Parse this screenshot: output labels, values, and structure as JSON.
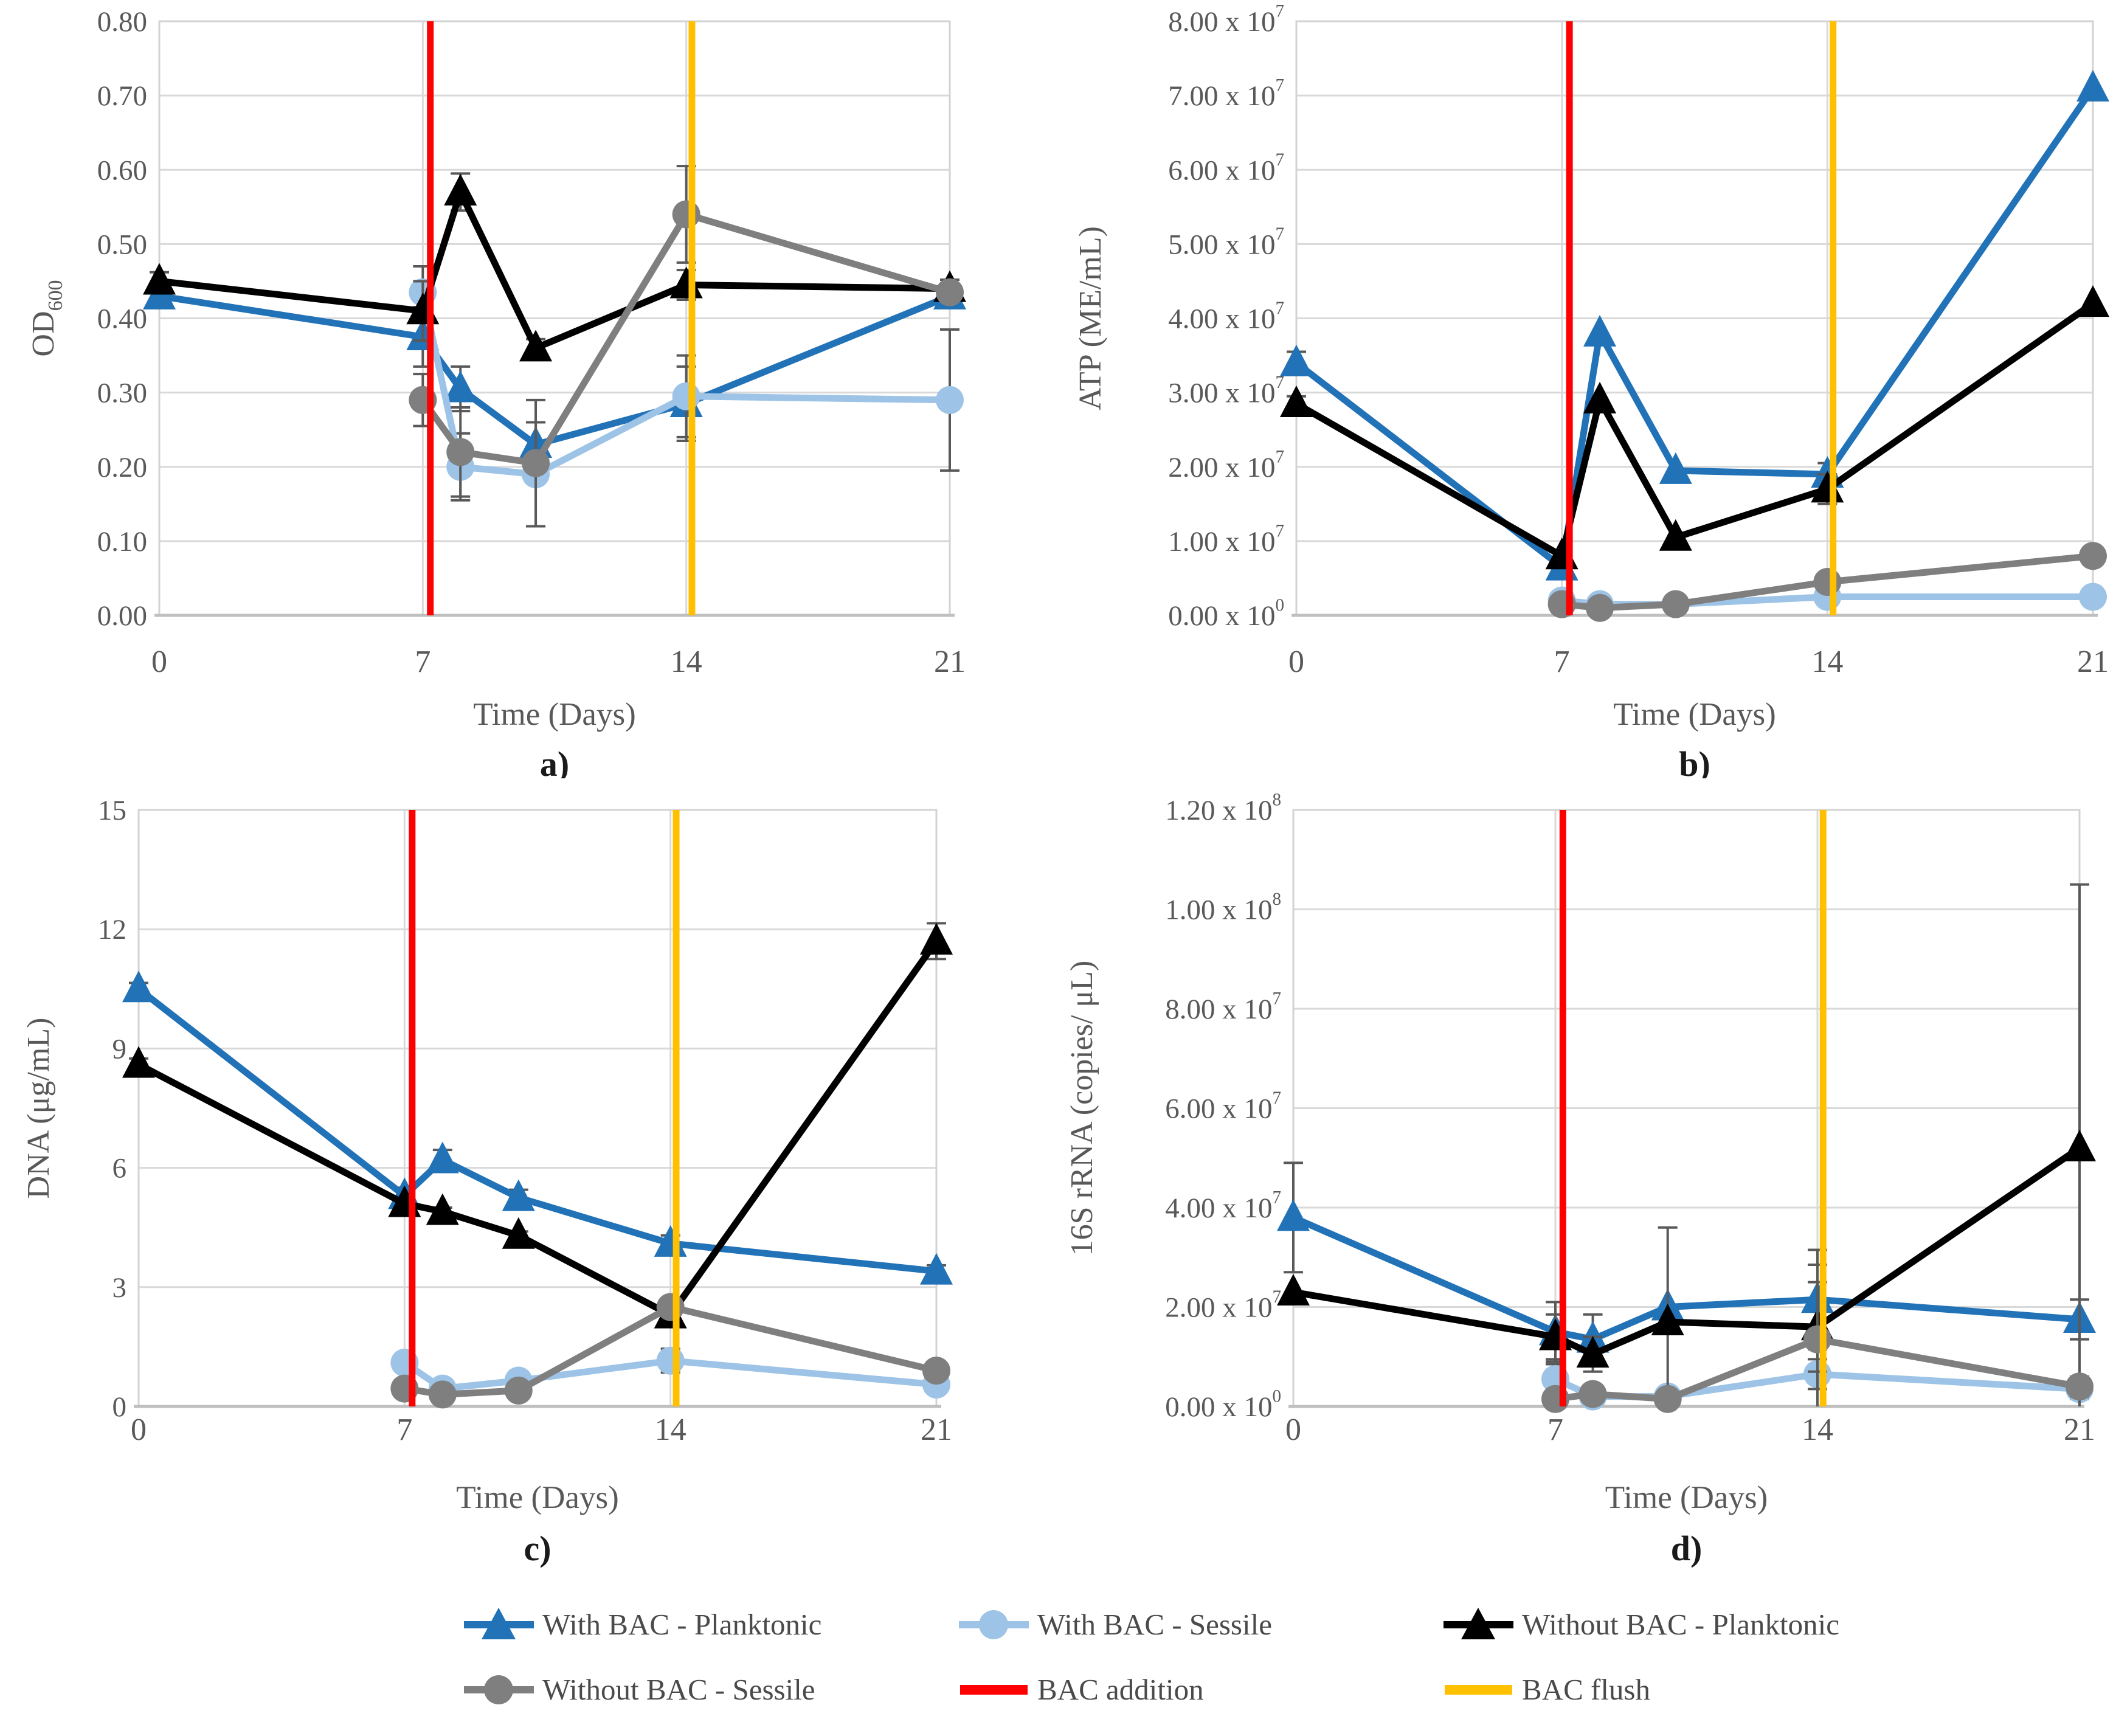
{
  "figure": {
    "background": "#FFFFFF"
  },
  "colors": {
    "blue": "#2272B8",
    "lightblue": "#9DC3E6",
    "black": "#000000",
    "gray": "#7F7F7F",
    "red": "#FF0000",
    "gold": "#FFC000",
    "grid": "#D9D9D9",
    "axis_text": "#595959",
    "panel_text": "#1a1a1a",
    "error_bar": "#595959"
  },
  "legend": {
    "items": [
      {
        "label": "With BAC - Planktonic",
        "color_key": "blue",
        "marker": "triangle"
      },
      {
        "label": "With BAC - Sessile",
        "color_key": "lightblue",
        "marker": "circle"
      },
      {
        "label": "Without BAC - Planktonic",
        "color_key": "black",
        "marker": "triangle"
      },
      {
        "label": "Without BAC - Sessile",
        "color_key": "gray",
        "marker": "circle"
      },
      {
        "label": "BAC addition",
        "color_key": "red",
        "marker": "line"
      },
      {
        "label": "BAC flush",
        "color_key": "gold",
        "marker": "line"
      }
    ]
  },
  "chart_data": [
    {
      "id": "a",
      "type": "line",
      "panel_label": "a)",
      "xlabel": "Time (Days)",
      "ylabel": "OD",
      "ylabel_sub": "600",
      "xlim": [
        0,
        21
      ],
      "x_ticks": [
        0,
        7,
        14,
        21
      ],
      "ylim": [
        0,
        0.8
      ],
      "y_ticks": [
        {
          "v": 0.0,
          "label": "0.00"
        },
        {
          "v": 0.1,
          "label": "0.10"
        },
        {
          "v": 0.2,
          "label": "0.20"
        },
        {
          "v": 0.3,
          "label": "0.30"
        },
        {
          "v": 0.4,
          "label": "0.40"
        },
        {
          "v": 0.5,
          "label": "0.50"
        },
        {
          "v": 0.6,
          "label": "0.60"
        },
        {
          "v": 0.7,
          "label": "0.70"
        },
        {
          "v": 0.8,
          "label": "0.80"
        }
      ],
      "x": [
        0,
        7,
        8,
        10,
        14,
        21
      ],
      "series": [
        {
          "name": "With BAC - Planktonic",
          "color_key": "blue",
          "marker": "triangle",
          "y": [
            0.43,
            0.375,
            0.305,
            0.23,
            0.285,
            0.43
          ],
          "err": [
            0.012,
            0.04,
            0.03,
            0.03,
            0.05,
            0.012
          ]
        },
        {
          "name": "With BAC - Sessile",
          "color_key": "lightblue",
          "marker": "circle",
          "y": [
            null,
            0.435,
            0.2,
            0.19,
            0.295,
            0.29
          ],
          "err": [
            0,
            0.035,
            0.045,
            0.07,
            0.055,
            0.095
          ]
        },
        {
          "name": "Without BAC - Planktonic",
          "color_key": "black",
          "marker": "triangle",
          "y": [
            0.45,
            0.41,
            0.57,
            0.36,
            0.445,
            0.44
          ],
          "err": [
            0.012,
            0.04,
            0.025,
            0.012,
            0.02,
            0.012
          ]
        },
        {
          "name": "Without BAC - Sessile",
          "color_key": "gray",
          "marker": "circle",
          "y": [
            null,
            0.29,
            0.22,
            0.205,
            0.54,
            0.435
          ],
          "err": [
            0,
            0.035,
            0.06,
            0.085,
            0.065,
            0.012
          ]
        }
      ],
      "vlines": [
        {
          "x": 7.2,
          "color_key": "red",
          "name": "BAC addition"
        },
        {
          "x": 14.15,
          "color_key": "gold",
          "name": "BAC flush"
        }
      ]
    },
    {
      "id": "b",
      "type": "line",
      "panel_label": "b)",
      "xlabel": "Time (Days)",
      "ylabel": "ATP (ME/mL)",
      "xlim": [
        0,
        21
      ],
      "x_ticks": [
        0,
        7,
        14,
        21
      ],
      "ylim": [
        0,
        80000000
      ],
      "y_ticks": [
        {
          "v": 0,
          "label": "0.00 x 10^0"
        },
        {
          "v": 10000000,
          "label": "1.00 x 10^7"
        },
        {
          "v": 20000000,
          "label": "2.00 x 10^7"
        },
        {
          "v": 30000000,
          "label": "3.00 x 10^7"
        },
        {
          "v": 40000000,
          "label": "4.00 x 10^7"
        },
        {
          "v": 50000000,
          "label": "5.00 x 10^7"
        },
        {
          "v": 60000000,
          "label": "6.00 x 10^7"
        },
        {
          "v": 70000000,
          "label": "7.00 x 10^7"
        },
        {
          "v": 80000000,
          "label": "8.00 x 10^7"
        }
      ],
      "x": [
        0,
        7,
        8,
        10,
        14,
        21
      ],
      "series": [
        {
          "name": "With BAC - Planktonic",
          "color_key": "blue",
          "marker": "triangle",
          "y": [
            34000000,
            6500000,
            38000000,
            19500000,
            19000000,
            71000000
          ],
          "err": [
            1500000,
            0,
            0,
            0,
            1500000,
            0
          ]
        },
        {
          "name": "With BAC - Sessile",
          "color_key": "lightblue",
          "marker": "circle",
          "y": [
            null,
            2000000,
            1500000,
            1500000,
            2500000,
            2500000
          ],
          "err": [
            0,
            0,
            0,
            0,
            0,
            0
          ]
        },
        {
          "name": "Without BAC - Planktonic",
          "color_key": "black",
          "marker": "triangle",
          "y": [
            28500000,
            8000000,
            29000000,
            10500000,
            17000000,
            42000000
          ],
          "err": [
            1000000,
            0,
            0,
            0,
            2000000,
            0
          ]
        },
        {
          "name": "Without BAC - Sessile",
          "color_key": "gray",
          "marker": "circle",
          "y": [
            null,
            1500000,
            1000000,
            1500000,
            4500000,
            8000000
          ],
          "err": [
            0,
            0,
            0,
            0,
            1000000,
            800000
          ]
        }
      ],
      "vlines": [
        {
          "x": 7.2,
          "color_key": "red",
          "name": "BAC addition"
        },
        {
          "x": 14.15,
          "color_key": "gold",
          "name": "BAC flush"
        }
      ]
    },
    {
      "id": "c",
      "type": "line",
      "panel_label": "c)",
      "xlabel": "Time (Days)",
      "ylabel": "DNA (μg/mL)",
      "xlim": [
        0,
        21
      ],
      "x_ticks": [
        0,
        7,
        14,
        21
      ],
      "ylim": [
        0,
        15
      ],
      "y_ticks": [
        {
          "v": 0,
          "label": "0"
        },
        {
          "v": 3,
          "label": "3"
        },
        {
          "v": 6,
          "label": "6"
        },
        {
          "v": 9,
          "label": "9"
        },
        {
          "v": 12,
          "label": "12"
        },
        {
          "v": 15,
          "label": "15"
        }
      ],
      "x": [
        0,
        7,
        8,
        10,
        14,
        21
      ],
      "series": [
        {
          "name": "With BAC - Planktonic",
          "color_key": "blue",
          "marker": "triangle",
          "y": [
            10.5,
            5.3,
            6.2,
            5.25,
            4.1,
            3.4
          ],
          "err": [
            0.15,
            0.2,
            0.25,
            0.2,
            0.2,
            0.15
          ]
        },
        {
          "name": "With BAC - Sessile",
          "color_key": "lightblue",
          "marker": "circle",
          "y": [
            null,
            1.1,
            0.45,
            0.65,
            1.15,
            0.55
          ],
          "err": [
            0,
            0.15,
            0.1,
            0.12,
            0.3,
            0.1
          ]
        },
        {
          "name": "Without BAC - Planktonic",
          "color_key": "black",
          "marker": "triangle",
          "y": [
            8.6,
            5.1,
            4.9,
            4.3,
            2.3,
            11.7
          ],
          "err": [
            0.15,
            0.15,
            0.1,
            0.1,
            0.1,
            0.45
          ]
        },
        {
          "name": "Without BAC - Sessile",
          "color_key": "gray",
          "marker": "circle",
          "y": [
            null,
            0.45,
            0.3,
            0.4,
            2.5,
            0.9
          ],
          "err": [
            0,
            0.1,
            0.08,
            0.08,
            0.2,
            0.15
          ]
        }
      ],
      "vlines": [
        {
          "x": 7.2,
          "color_key": "red",
          "name": "BAC addition"
        },
        {
          "x": 14.15,
          "color_key": "gold",
          "name": "BAC flush"
        }
      ]
    },
    {
      "id": "d",
      "type": "line",
      "panel_label": "d)",
      "xlabel": "Time (Days)",
      "ylabel": "16S rRNA (copies/ μL)",
      "xlim": [
        0,
        21
      ],
      "x_ticks": [
        0,
        7,
        14,
        21
      ],
      "ylim": [
        0,
        120000000
      ],
      "y_ticks": [
        {
          "v": 0,
          "label": "0.00 x 10^0"
        },
        {
          "v": 20000000,
          "label": "2.00 x 10^7"
        },
        {
          "v": 40000000,
          "label": "4.00 x 10^7"
        },
        {
          "v": 60000000,
          "label": "6.00 x 10^7"
        },
        {
          "v": 80000000,
          "label": "8.00 x 10^7"
        },
        {
          "v": 100000000,
          "label": "1.00 x 10^8"
        },
        {
          "v": 120000000,
          "label": "1.20 x 10^8"
        }
      ],
      "x": [
        0,
        7,
        8,
        10,
        14,
        21
      ],
      "series": [
        {
          "name": "With BAC - Planktonic",
          "color_key": "blue",
          "marker": "triangle",
          "y": [
            38000000,
            15000000,
            13500000,
            20000000,
            21500000,
            17500000
          ],
          "err": [
            11000000,
            6000000,
            5000000,
            0,
            10000000,
            4000000
          ]
        },
        {
          "name": "With BAC - Sessile",
          "color_key": "lightblue",
          "marker": "circle",
          "y": [
            null,
            5500000,
            2000000,
            2000000,
            6500000,
            3500000
          ],
          "err": [
            0,
            3000000,
            1500000,
            1500000,
            3000000,
            2000000
          ]
        },
        {
          "name": "Without BAC - Planktonic",
          "color_key": "black",
          "marker": "triangle",
          "y": [
            23000000,
            14000000,
            10500000,
            17000000,
            16000000,
            52000000
          ],
          "err": [
            0,
            4500000,
            3500000,
            19000000,
            9000000,
            53000000
          ]
        },
        {
          "name": "Without BAC - Sessile",
          "color_key": "gray",
          "marker": "circle",
          "y": [
            null,
            1500000,
            2500000,
            1500000,
            13500000,
            4000000
          ],
          "err": [
            0,
            1000000,
            1000000,
            1000000,
            15000000,
            2000000
          ]
        }
      ],
      "vlines": [
        {
          "x": 7.2,
          "color_key": "red",
          "name": "BAC addition"
        },
        {
          "x": 14.15,
          "color_key": "gold",
          "name": "BAC flush"
        }
      ]
    }
  ]
}
